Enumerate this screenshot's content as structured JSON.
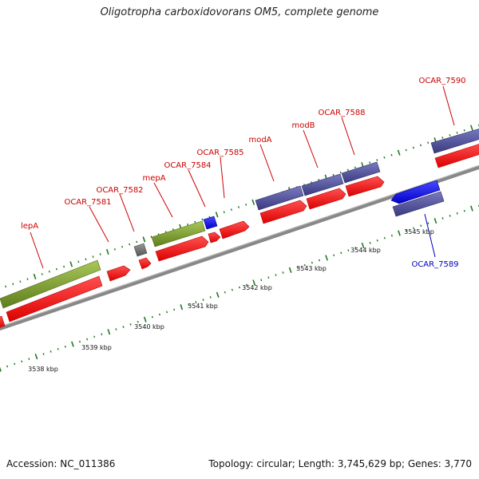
{
  "title": "Oligotropha carboxidovorans OM5, complete genome",
  "footer": {
    "accession": "Accession: NC_011386",
    "summary": "Topology: circular; Length: 3,745,629 bp; Genes: 3,770"
  },
  "colors": {
    "cds_red": "#ff1010",
    "rrna_olive": "#7a9a2a",
    "purple": "#4f4f99",
    "blue": "#1010ee",
    "gray": "#777777",
    "axis": "#888888",
    "tick": "#1e7a1e",
    "gene_label": "#cc0000",
    "gene_label_reverse": "#0000bb"
  },
  "kbp_labels": [
    "3538 kbp",
    "3539 kbp",
    "3540 kbp",
    "3541 kbp",
    "3542 kbp",
    "3543 kbp",
    "3544 kbp",
    "3545 kbp"
  ],
  "gene_labels": [
    {
      "text": "lepA",
      "strand": "forward"
    },
    {
      "text": "OCAR_7581",
      "strand": "forward"
    },
    {
      "text": "OCAR_7582",
      "strand": "forward"
    },
    {
      "text": "mepA",
      "strand": "forward"
    },
    {
      "text": "OCAR_7584",
      "strand": "forward"
    },
    {
      "text": "OCAR_7585",
      "strand": "forward"
    },
    {
      "text": "modA",
      "strand": "forward"
    },
    {
      "text": "modB",
      "strand": "forward"
    },
    {
      "text": "OCAR_7588",
      "strand": "forward"
    },
    {
      "text": "OCAR_7589",
      "strand": "reverse"
    },
    {
      "text": "OCAR_7590",
      "strand": "forward"
    }
  ],
  "features": [
    {
      "name": "lepA",
      "track": "forward-outer",
      "color": "rrna_olive"
    },
    {
      "name": "lepA-cds",
      "track": "forward-inner",
      "color": "cds_red"
    },
    {
      "name": "OCAR_7581",
      "track": "forward-inner",
      "color": "cds_red"
    },
    {
      "name": "OCAR_7582",
      "track": "forward-outer",
      "color": "gray"
    },
    {
      "name": "OCAR_7582-cds",
      "track": "forward-inner",
      "color": "cds_red"
    },
    {
      "name": "mepA",
      "track": "forward-outer",
      "color": "rrna_olive"
    },
    {
      "name": "mepA-cds",
      "track": "forward-inner",
      "color": "cds_red"
    },
    {
      "name": "OCAR_7584",
      "track": "forward-outer",
      "color": "blue"
    },
    {
      "name": "OCAR_7584-cds",
      "track": "forward-inner",
      "color": "cds_red"
    },
    {
      "name": "OCAR_7585",
      "track": "forward-inner",
      "color": "cds_red"
    },
    {
      "name": "modA",
      "track": "forward-outer",
      "color": "purple"
    },
    {
      "name": "modA-cds",
      "track": "forward-inner",
      "color": "cds_red"
    },
    {
      "name": "modB",
      "track": "forward-outer",
      "color": "purple"
    },
    {
      "name": "modB-cds",
      "track": "forward-inner",
      "color": "cds_red"
    },
    {
      "name": "OCAR_7588",
      "track": "forward-outer",
      "color": "purple"
    },
    {
      "name": "OCAR_7588-cds",
      "track": "forward-inner",
      "color": "cds_red"
    },
    {
      "name": "OCAR_7589",
      "track": "reverse-outer",
      "color": "blue"
    },
    {
      "name": "OCAR_7589-cds",
      "track": "reverse-inner",
      "color": "purple"
    },
    {
      "name": "OCAR_7590",
      "track": "forward-outer",
      "color": "purple"
    },
    {
      "name": "OCAR_7590-cds",
      "track": "forward-inner",
      "color": "cds_red"
    }
  ]
}
